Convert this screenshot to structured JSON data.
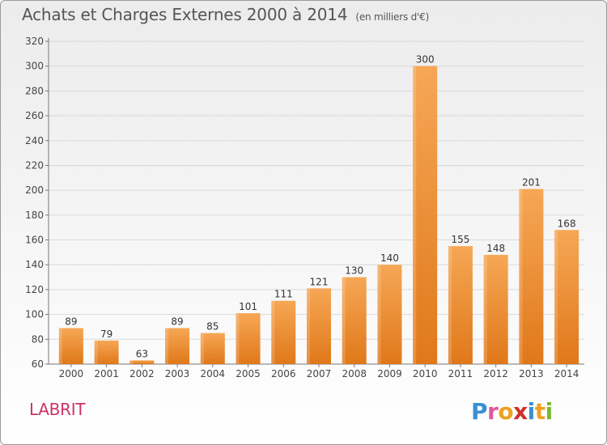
{
  "header": {
    "title": "Achats et Charges Externes 2000 à 2014",
    "subtitle": "(en milliers d'€)"
  },
  "footer": {
    "city": "LABRIT",
    "logo_text": "Proxiti"
  },
  "chart_data": {
    "type": "bar",
    "title": "Achats et Charges Externes 2000 à 2014",
    "subtitle": "(en milliers d'€)",
    "categories": [
      "2000",
      "2001",
      "2002",
      "2003",
      "2004",
      "2005",
      "2006",
      "2007",
      "2008",
      "2009",
      "2010",
      "2011",
      "2012",
      "2013",
      "2014"
    ],
    "values": [
      89,
      79,
      63,
      89,
      85,
      101,
      111,
      121,
      130,
      140,
      300,
      155,
      148,
      201,
      168
    ],
    "xlabel": "",
    "ylabel": "",
    "ylim": [
      60,
      320
    ],
    "yticks": [
      60,
      80,
      100,
      120,
      140,
      160,
      180,
      200,
      220,
      240,
      260,
      280,
      300,
      320
    ],
    "grid": true,
    "bar_color": "#f0902e",
    "bar_highlight": "#f6a55a",
    "label_color": "#cc3366"
  }
}
